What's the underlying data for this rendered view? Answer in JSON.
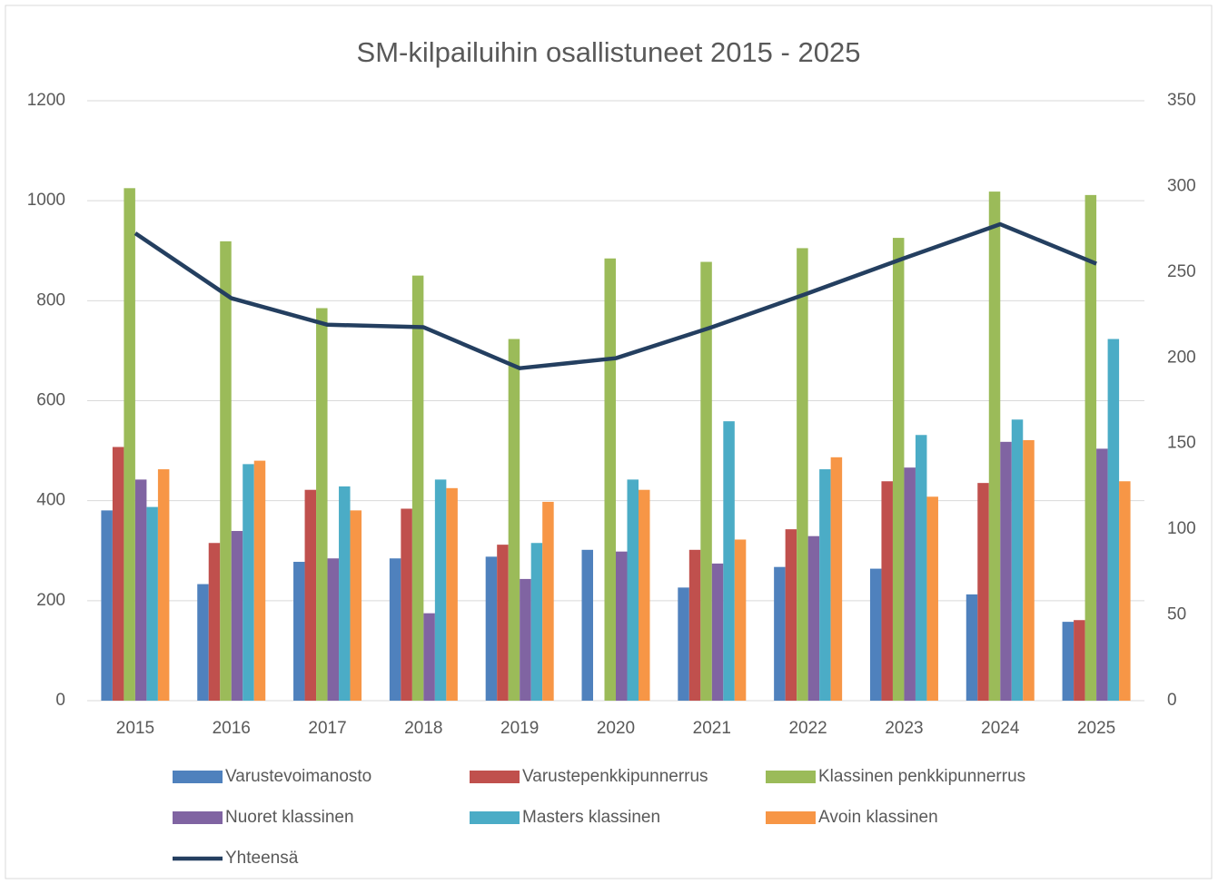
{
  "chart_data": {
    "type": "bar",
    "title": "SM-kilpailuihin osallistuneet 2015 - 2025",
    "categories": [
      "2015",
      "2016",
      "2017",
      "2018",
      "2019",
      "2020",
      "2021",
      "2022",
      "2023",
      "2024",
      "2025"
    ],
    "series": [
      {
        "name": "Varustevoimanosto",
        "color": "#4f81bd",
        "axis": "y2",
        "values": [
          111,
          68,
          81,
          83,
          84,
          88,
          66,
          78,
          77,
          62,
          46
        ]
      },
      {
        "name": "Varustepenkkipunnerrus",
        "color": "#c0504d",
        "axis": "y2",
        "values": [
          148,
          92,
          123,
          112,
          91,
          null,
          88,
          100,
          128,
          127,
          47
        ]
      },
      {
        "name": "Klassinen penkkipunnerrus",
        "color": "#9bbb59",
        "axis": "y2",
        "values": [
          299,
          268,
          229,
          248,
          211,
          258,
          256,
          264,
          270,
          297,
          295
        ]
      },
      {
        "name": "Nuoret klassinen",
        "color": "#8064a2",
        "axis": "y2",
        "values": [
          129,
          99,
          83,
          51,
          71,
          87,
          80,
          96,
          136,
          151,
          147
        ]
      },
      {
        "name": "Masters klassinen",
        "color": "#4bacc6",
        "axis": "y2",
        "values": [
          113,
          138,
          125,
          129,
          92,
          129,
          163,
          135,
          155,
          164,
          211
        ]
      },
      {
        "name": "Avoin klassinen",
        "color": "#f79646",
        "axis": "y2",
        "values": [
          135,
          140,
          111,
          124,
          116,
          123,
          94,
          142,
          119,
          152,
          128
        ]
      },
      {
        "name": "Yhteensä",
        "color": "#243f60",
        "type": "line",
        "values": [
          935,
          805,
          752,
          747,
          665,
          685,
          747,
          815,
          885,
          953,
          874
        ]
      }
    ],
    "ylim": [
      0,
      1200
    ],
    "yticks": [
      0,
      200,
      400,
      600,
      800,
      1000,
      1200
    ],
    "y2lim": [
      0,
      350
    ],
    "y2ticks": [
      0,
      50,
      100,
      150,
      200,
      250,
      300,
      350
    ],
    "grid": true,
    "legend": "bottom"
  }
}
